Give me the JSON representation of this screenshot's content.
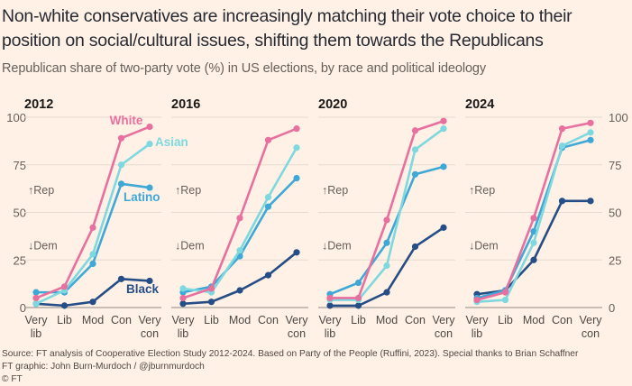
{
  "title": "Non-white conservatives are increasingly matching their vote choice to their position on social/cultural issues, shifting them towards the Republicans",
  "subtitle": "Republican share of two-party vote (%) in US elections, by race and political ideology",
  "footer": {
    "source": "Source: FT analysis of Cooperative Election Study 2012-2024. Based on Party of the People (Ruffini, 2023). Special thanks to Brian Schaffner",
    "credit": "FT graphic: John Burn-Murdoch / @jburnmurdoch",
    "copyright": "© FT"
  },
  "chart_data": {
    "type": "line",
    "categories": [
      "Very lib",
      "Lib",
      "Mod",
      "Con",
      "Very con"
    ],
    "ylim": [
      0,
      100
    ],
    "yticks": [
      0,
      25,
      50,
      75,
      100
    ],
    "colors": {
      "White": "#e8709f",
      "Asian": "#7ed8df",
      "Latino": "#3ea8d6",
      "Black": "#264e86"
    },
    "annotations": {
      "up": "↑Rep",
      "down": "↓Dem"
    },
    "panels": [
      {
        "year": "2012",
        "series": [
          {
            "name": "White",
            "values": [
              5,
              11,
              42,
              89,
              95
            ]
          },
          {
            "name": "Asian",
            "values": [
              2,
              9,
              28,
              75,
              86
            ]
          },
          {
            "name": "Latino",
            "values": [
              8,
              8,
              23,
              65,
              63
            ]
          },
          {
            "name": "Black",
            "values": [
              2,
              1,
              3,
              15,
              14
            ]
          }
        ]
      },
      {
        "year": "2016",
        "series": [
          {
            "name": "White",
            "values": [
              5,
              10,
              47,
              88,
              94
            ]
          },
          {
            "name": "Asian",
            "values": [
              10,
              8,
              30,
              58,
              84
            ]
          },
          {
            "name": "Latino",
            "values": [
              8,
              11,
              27,
              53,
              68
            ]
          },
          {
            "name": "Black",
            "values": [
              2,
              3,
              9,
              17,
              29
            ]
          }
        ]
      },
      {
        "year": "2020",
        "series": [
          {
            "name": "White",
            "values": [
              5,
              5,
              46,
              93,
              98
            ]
          },
          {
            "name": "Asian",
            "values": [
              4,
              4,
              22,
              83,
              94
            ]
          },
          {
            "name": "Latino",
            "values": [
              7,
              13,
              34,
              70,
              74
            ]
          },
          {
            "name": "Black",
            "values": [
              1,
              1,
              8,
              32,
              42
            ]
          }
        ]
      },
      {
        "year": "2024",
        "series": [
          {
            "name": "White",
            "values": [
              4,
              8,
              47,
              94,
              97
            ]
          },
          {
            "name": "Asian",
            "values": [
              3,
              4,
              34,
              85,
              92
            ]
          },
          {
            "name": "Latino",
            "values": [
              5,
              9,
              40,
              84,
              88
            ]
          },
          {
            "name": "Black",
            "values": [
              7,
              9,
              25,
              56,
              56
            ]
          }
        ]
      }
    ],
    "series_labels": [
      {
        "name": "White",
        "text": "White",
        "panel": 0
      },
      {
        "name": "Asian",
        "text": "Asian",
        "panel": 0
      },
      {
        "name": "Latino",
        "text": "Latino",
        "panel": 0
      },
      {
        "name": "Black",
        "text": "Black",
        "panel": 0
      }
    ]
  }
}
